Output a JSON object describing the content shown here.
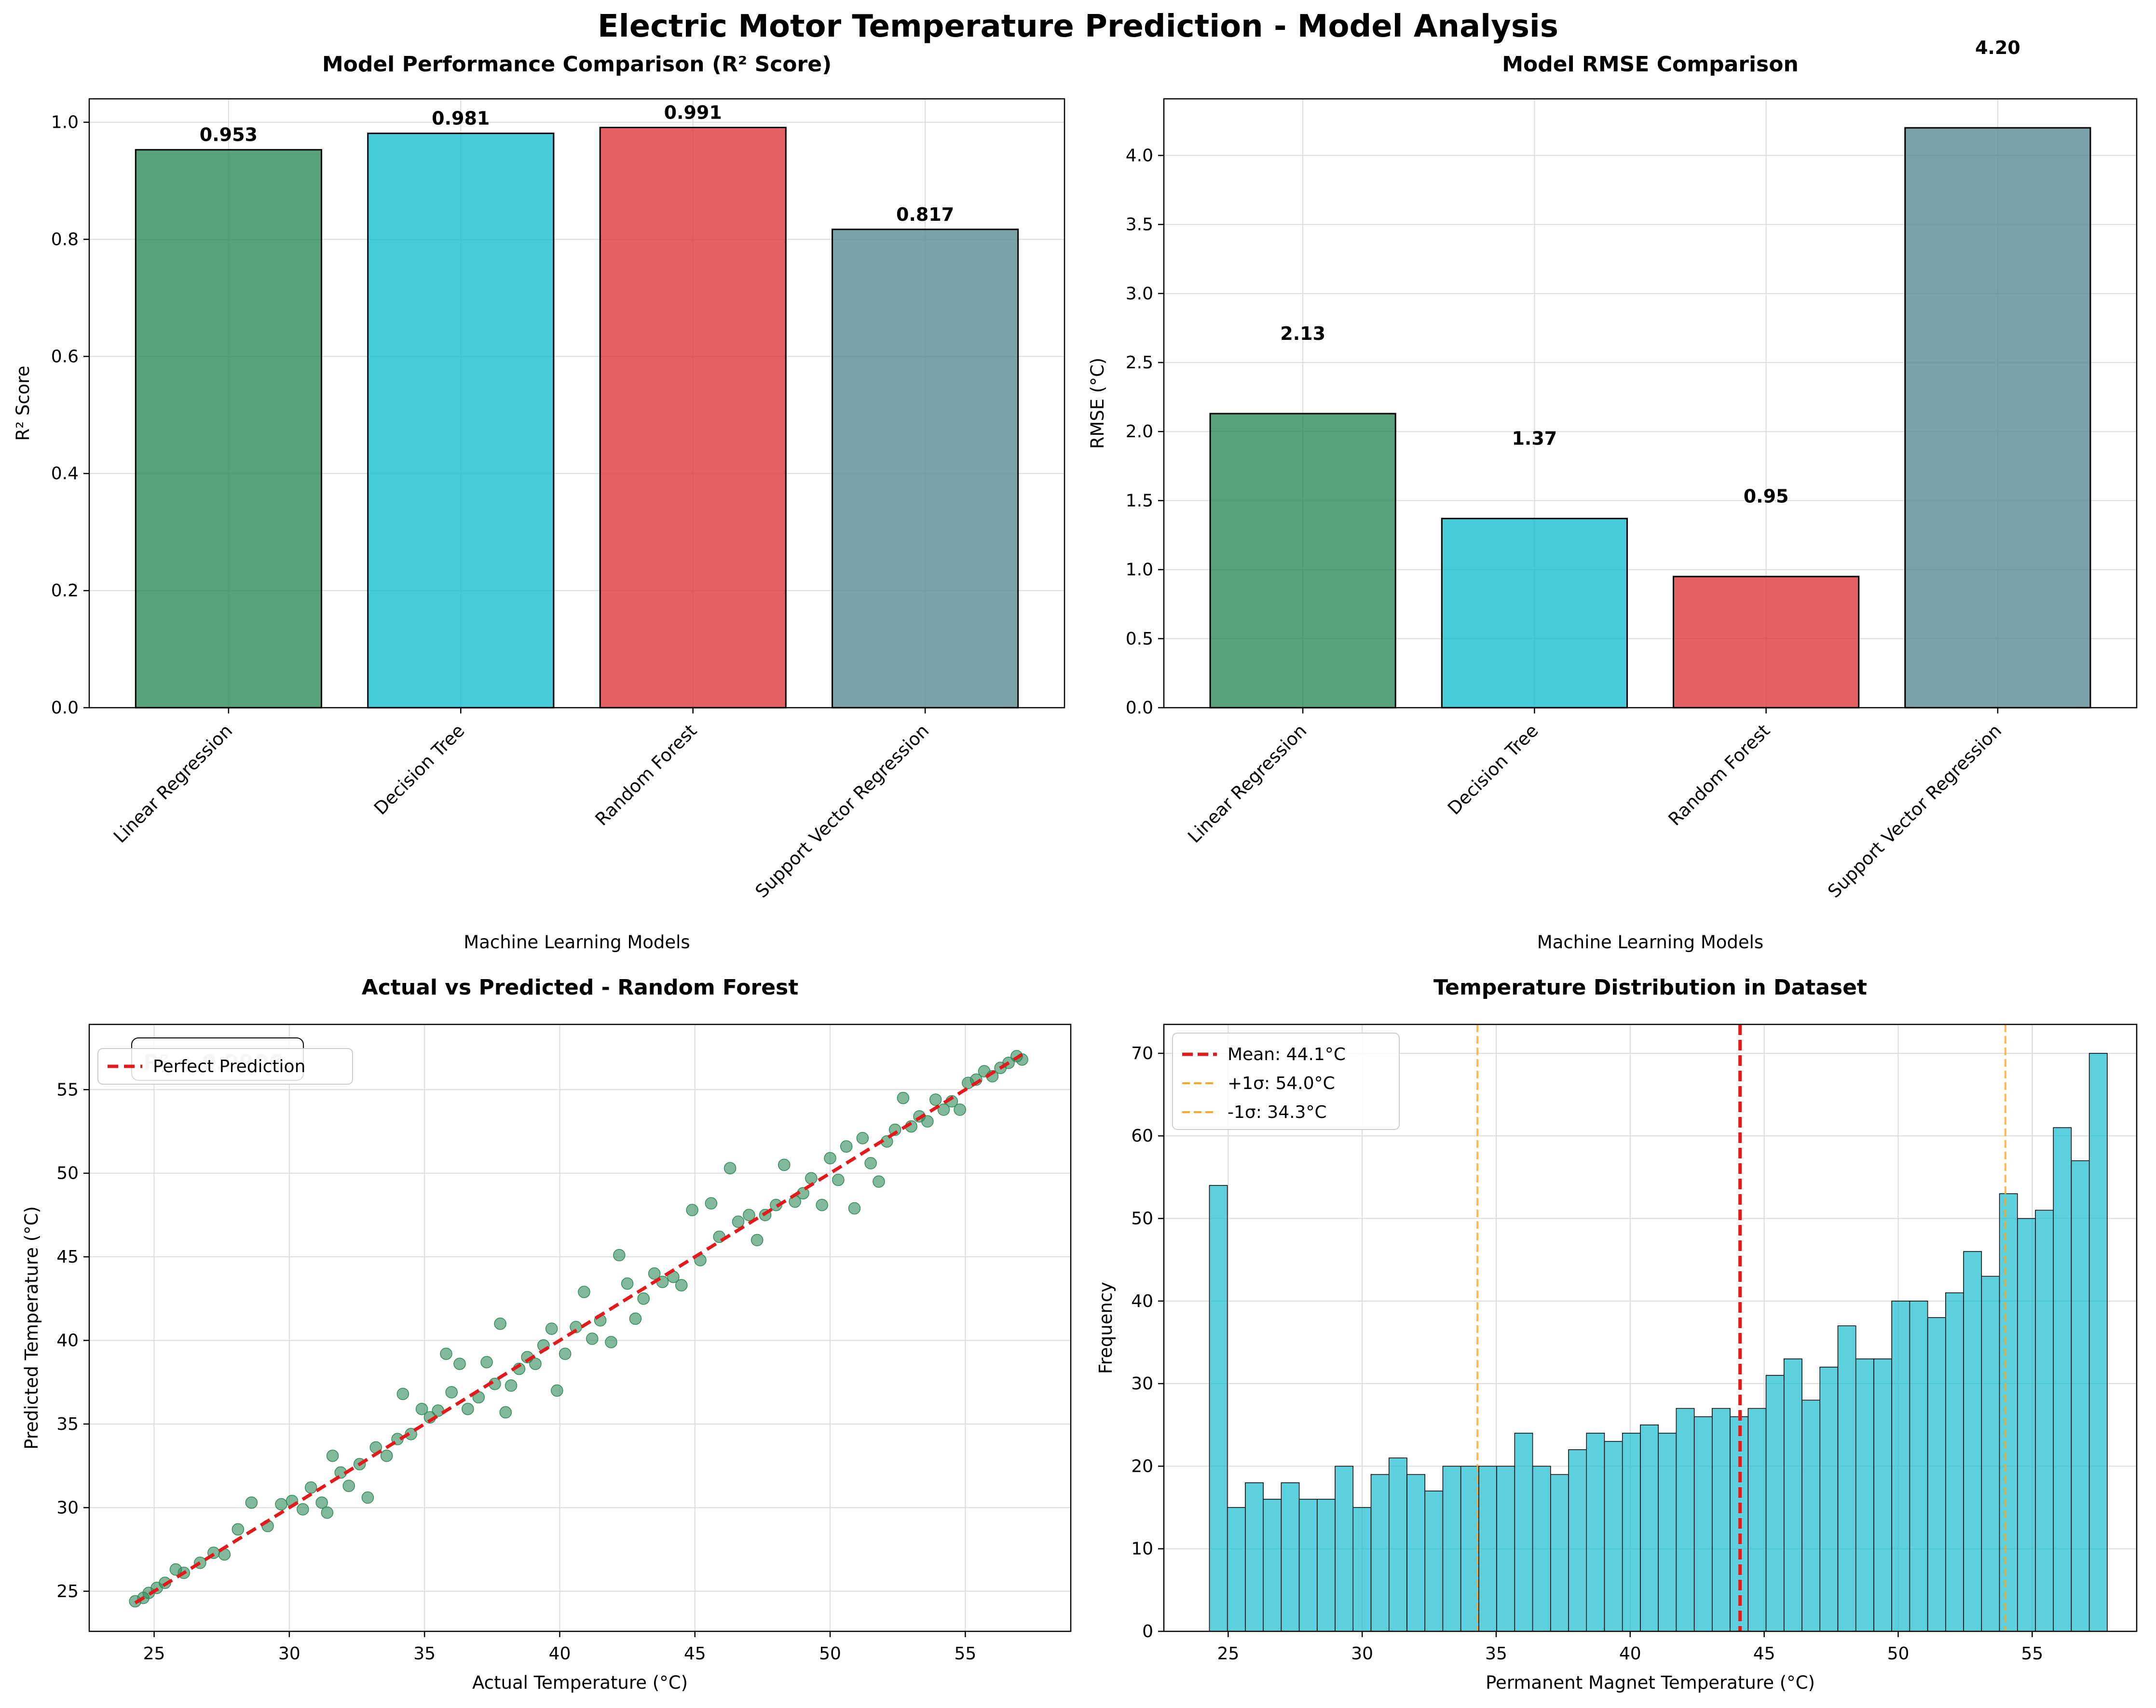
{
  "figure": {
    "title": "Electric Motor Temperature Prediction - Model Analysis"
  },
  "colors": {
    "linear_regression": "#2E8B57",
    "decision_tree": "#17BECF",
    "random_forest": "#DC3A3E",
    "support_vector_regression": "#5A8A93",
    "scatter": "#2E8B57",
    "perfect_line": "#E31A1C",
    "hist": "#17BECF",
    "mean_line": "#E31A1C",
    "sigma_line": "#FFA726"
  },
  "chart_data": [
    {
      "type": "bar",
      "title": "Model Performance Comparison (R² Score)",
      "xlabel": "",
      "ylabel": "R² Score",
      "categories": [
        "Linear Regression",
        "Decision Tree",
        "Random Forest",
        "Support Vector Regression"
      ],
      "values": [
        0.953,
        0.981,
        0.991,
        0.817
      ],
      "value_labels": [
        "0.953",
        "0.981",
        "0.991",
        "0.817"
      ],
      "ylim": [
        0,
        1.04
      ],
      "yticks": [
        "0.0",
        "0.2",
        "0.4",
        "0.6",
        "0.8",
        "1.0"
      ],
      "grid": true
    },
    {
      "type": "bar",
      "title": "Model RMSE Comparison",
      "xlabel": "Machine Learning Models",
      "ylabel": "RMSE (°C)",
      "categories": [
        "Linear Regression",
        "Decision Tree",
        "Random Forest",
        "Support Vector Regression"
      ],
      "values": [
        2.13,
        1.37,
        0.95,
        4.2
      ],
      "value_labels": [
        "2.13",
        "1.37",
        "0.95",
        "4.20"
      ],
      "ylim": [
        0,
        4.41
      ],
      "yticks": [
        "0.0",
        "0.5",
        "1.0",
        "1.5",
        "2.0",
        "2.5",
        "3.0",
        "3.5",
        "4.0"
      ],
      "grid": true
    },
    {
      "type": "scatter",
      "title": "Actual vs Predicted - Random Forest",
      "xlabel": "Actual Temperature (°C)",
      "ylabel": "Predicted Temperature (°C)",
      "xlim": [
        22.6,
        58.9
      ],
      "ylim": [
        22.6,
        58.9
      ],
      "xticks": [
        "25",
        "30",
        "35",
        "40",
        "45",
        "50",
        "55"
      ],
      "yticks": [
        "25",
        "30",
        "35",
        "40",
        "45",
        "50",
        "55"
      ],
      "annotation": "R² = 0.9906",
      "legend": [
        "Perfect Prediction"
      ],
      "legend_position": "upper-left",
      "perfect_line": [
        [
          24.3,
          24.3
        ],
        [
          57.1,
          57.1
        ]
      ],
      "points": [
        [
          24.3,
          24.4
        ],
        [
          24.6,
          24.6
        ],
        [
          24.8,
          24.9
        ],
        [
          25.1,
          25.2
        ],
        [
          25.4,
          25.5
        ],
        [
          25.8,
          26.3
        ],
        [
          26.1,
          26.1
        ],
        [
          26.7,
          26.7
        ],
        [
          27.2,
          27.3
        ],
        [
          27.6,
          27.2
        ],
        [
          28.1,
          28.7
        ],
        [
          28.6,
          30.3
        ],
        [
          29.2,
          28.9
        ],
        [
          29.7,
          30.2
        ],
        [
          30.1,
          30.4
        ],
        [
          30.5,
          29.9
        ],
        [
          30.8,
          31.2
        ],
        [
          31.2,
          30.3
        ],
        [
          31.4,
          29.7
        ],
        [
          31.6,
          33.1
        ],
        [
          31.9,
          32.1
        ],
        [
          32.2,
          31.3
        ],
        [
          32.6,
          32.6
        ],
        [
          32.9,
          30.6
        ],
        [
          33.2,
          33.6
        ],
        [
          33.6,
          33.1
        ],
        [
          34.0,
          34.1
        ],
        [
          34.2,
          36.8
        ],
        [
          34.5,
          34.4
        ],
        [
          34.9,
          35.9
        ],
        [
          35.2,
          35.4
        ],
        [
          35.5,
          35.8
        ],
        [
          35.8,
          39.2
        ],
        [
          36.0,
          36.9
        ],
        [
          36.3,
          38.6
        ],
        [
          36.6,
          35.9
        ],
        [
          37.0,
          36.6
        ],
        [
          37.3,
          38.7
        ],
        [
          37.6,
          37.4
        ],
        [
          37.8,
          41.0
        ],
        [
          38.0,
          35.7
        ],
        [
          38.2,
          37.3
        ],
        [
          38.5,
          38.3
        ],
        [
          38.8,
          39.0
        ],
        [
          39.1,
          38.6
        ],
        [
          39.4,
          39.7
        ],
        [
          39.7,
          40.7
        ],
        [
          39.9,
          37.0
        ],
        [
          40.2,
          39.2
        ],
        [
          40.6,
          40.8
        ],
        [
          40.9,
          42.9
        ],
        [
          41.2,
          40.1
        ],
        [
          41.5,
          41.2
        ],
        [
          41.9,
          39.9
        ],
        [
          42.2,
          45.1
        ],
        [
          42.5,
          43.4
        ],
        [
          42.8,
          41.3
        ],
        [
          43.1,
          42.5
        ],
        [
          43.5,
          44.0
        ],
        [
          43.8,
          43.5
        ],
        [
          44.2,
          43.8
        ],
        [
          44.5,
          43.3
        ],
        [
          44.9,
          47.8
        ],
        [
          45.2,
          44.8
        ],
        [
          45.6,
          48.2
        ],
        [
          45.9,
          46.2
        ],
        [
          46.3,
          50.3
        ],
        [
          46.6,
          47.1
        ],
        [
          47.0,
          47.5
        ],
        [
          47.3,
          46.0
        ],
        [
          47.6,
          47.5
        ],
        [
          48.0,
          48.1
        ],
        [
          48.3,
          50.5
        ],
        [
          48.7,
          48.3
        ],
        [
          49.0,
          48.8
        ],
        [
          49.3,
          49.7
        ],
        [
          49.7,
          48.1
        ],
        [
          50.0,
          50.9
        ],
        [
          50.3,
          49.6
        ],
        [
          50.6,
          51.6
        ],
        [
          50.9,
          47.9
        ],
        [
          51.2,
          52.1
        ],
        [
          51.5,
          50.6
        ],
        [
          51.8,
          49.5
        ],
        [
          52.1,
          51.9
        ],
        [
          52.4,
          52.6
        ],
        [
          52.7,
          54.5
        ],
        [
          53.0,
          52.8
        ],
        [
          53.3,
          53.4
        ],
        [
          53.6,
          53.1
        ],
        [
          53.9,
          54.4
        ],
        [
          54.2,
          53.8
        ],
        [
          54.5,
          54.3
        ],
        [
          54.8,
          53.8
        ],
        [
          55.1,
          55.4
        ],
        [
          55.4,
          55.6
        ],
        [
          55.7,
          56.1
        ],
        [
          56.0,
          55.8
        ],
        [
          56.3,
          56.3
        ],
        [
          56.6,
          56.6
        ],
        [
          56.9,
          57.0
        ],
        [
          57.1,
          56.8
        ]
      ],
      "grid": true
    },
    {
      "type": "bar",
      "subtype": "histogram",
      "title": "Temperature Distribution in Dataset",
      "xlabel": "Permanent Magnet Temperature (°C)",
      "ylabel": "Frequency",
      "xlim": [
        22.6,
        58.9
      ],
      "ylim": [
        0,
        73.5
      ],
      "xticks": [
        "25",
        "30",
        "35",
        "40",
        "45",
        "50",
        "55"
      ],
      "yticks": [
        "0",
        "10",
        "20",
        "30",
        "40",
        "50",
        "60",
        "70"
      ],
      "bin_start": 24.3,
      "bin_width": 0.67,
      "counts": [
        54,
        15,
        18,
        16,
        18,
        16,
        16,
        20,
        15,
        19,
        21,
        19,
        17,
        20,
        20,
        20,
        20,
        24,
        20,
        19,
        22,
        24,
        23,
        24,
        25,
        24,
        27,
        26,
        27,
        26,
        27,
        31,
        33,
        28,
        32,
        37,
        33,
        33,
        40,
        40,
        38,
        41,
        46,
        43,
        53,
        50,
        51,
        61,
        57,
        70
      ],
      "mean": 44.1,
      "plus_sigma": 54.0,
      "minus_sigma": 34.3,
      "legend": [
        "Mean: 44.1°C",
        "+1σ: 54.0°C",
        "-1σ: 34.3°C"
      ],
      "legend_position": "upper-left",
      "grid": true
    }
  ]
}
